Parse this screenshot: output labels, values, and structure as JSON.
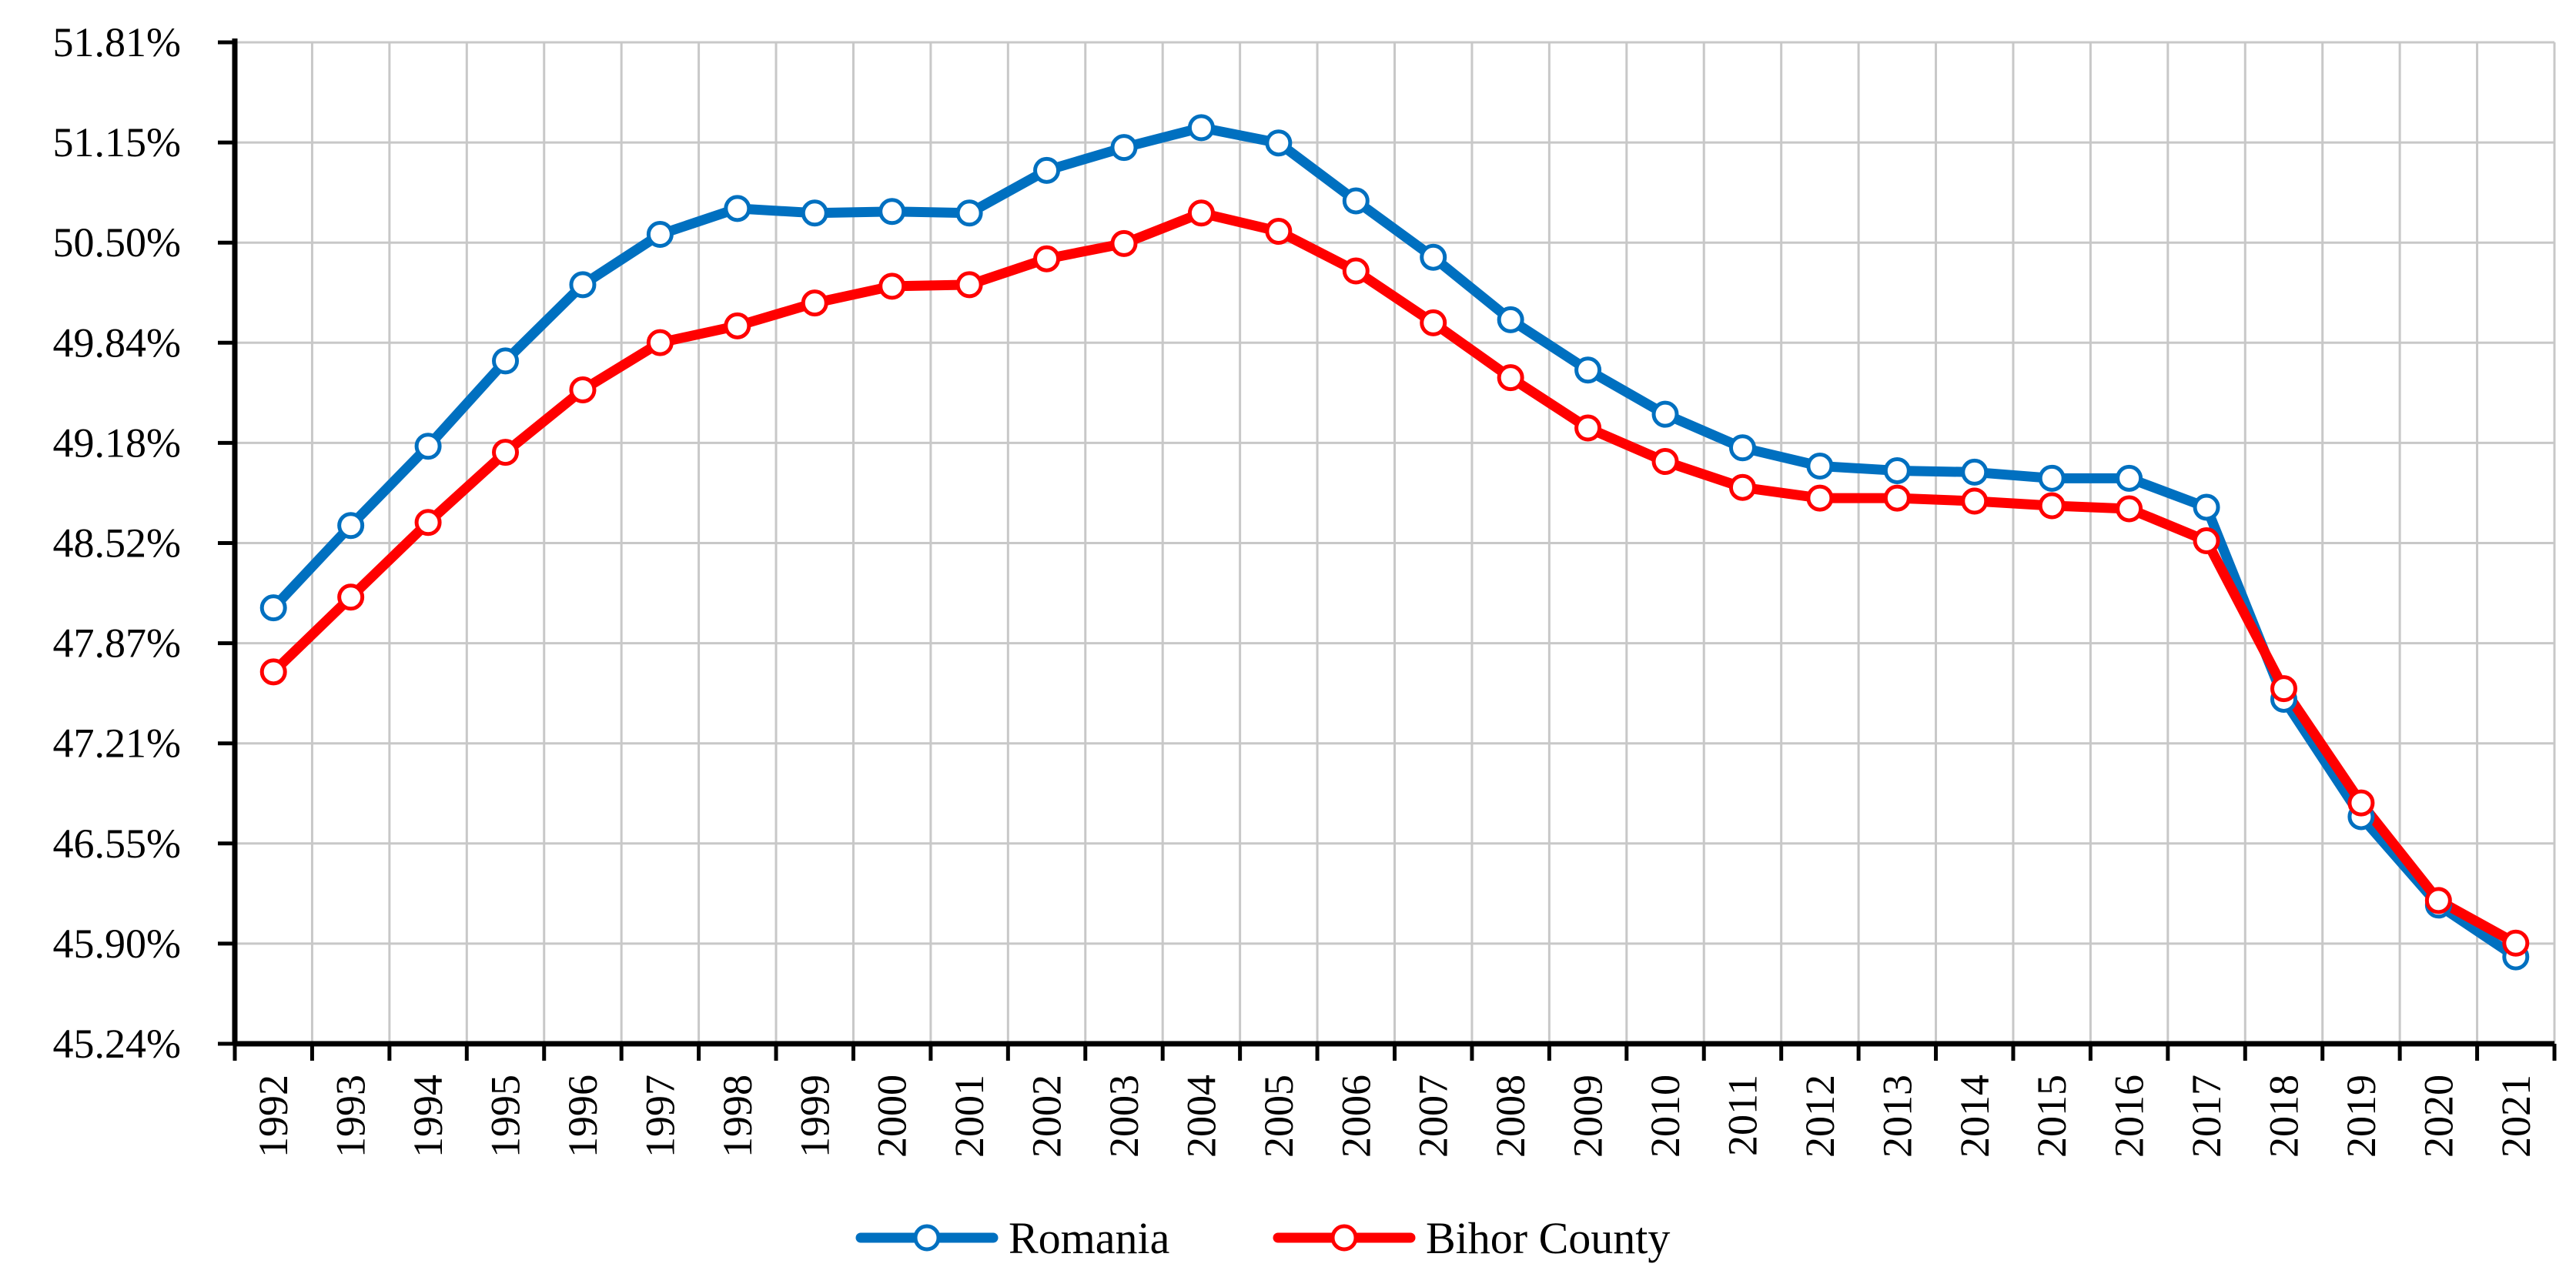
{
  "chart_data": {
    "type": "line",
    "title": "",
    "xlabel": "",
    "ylabel": "",
    "categories": [
      "1992",
      "1993",
      "1994",
      "1995",
      "1996",
      "1997",
      "1998",
      "1999",
      "2000",
      "2001",
      "2002",
      "2003",
      "2004",
      "2005",
      "2006",
      "2007",
      "2008",
      "2009",
      "2010",
      "2011",
      "2012",
      "2013",
      "2014",
      "2015",
      "2016",
      "2017",
      "2018",
      "2019",
      "2020",
      "2021"
    ],
    "y_ticks": [
      "45.24%",
      "45.90%",
      "46.55%",
      "47.21%",
      "47.87%",
      "48.52%",
      "49.18%",
      "49.84%",
      "50.50%",
      "51.15%",
      "51.81%"
    ],
    "ylim": [
      45.24,
      51.81
    ],
    "grid": true,
    "legend_position": "bottom-center",
    "series": [
      {
        "name": "Romania",
        "color": "#0070C0",
        "values": [
          48.1,
          48.64,
          49.16,
          49.72,
          50.22,
          50.55,
          50.72,
          50.69,
          50.7,
          50.69,
          50.97,
          51.12,
          51.25,
          51.15,
          50.77,
          50.4,
          49.99,
          49.66,
          49.37,
          49.15,
          49.03,
          49.0,
          48.99,
          48.95,
          48.95,
          48.76,
          47.5,
          46.73,
          46.15,
          45.81
        ],
        "marker": "circle"
      },
      {
        "name": "Bihor County",
        "color": "#FF0000",
        "values": [
          47.68,
          48.17,
          48.66,
          49.12,
          49.53,
          49.84,
          49.95,
          50.1,
          50.21,
          50.22,
          50.39,
          50.49,
          50.69,
          50.57,
          50.31,
          49.97,
          49.61,
          49.28,
          49.06,
          48.89,
          48.82,
          48.82,
          48.8,
          48.77,
          48.75,
          48.54,
          47.57,
          46.82,
          46.18,
          45.9
        ],
        "marker": "circle"
      }
    ]
  }
}
